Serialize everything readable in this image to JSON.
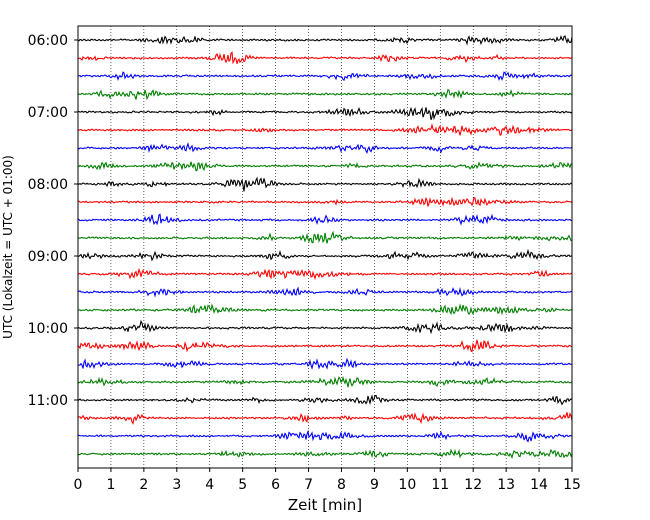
{
  "chart_data": {
    "type": "line",
    "title": "",
    "xlabel": "Zeit  [min]",
    "ylabel": "UTC (Lokalzeit = UTC + 01:00)",
    "xlim": [
      0,
      15
    ],
    "x_ticks": [
      "0",
      "1",
      "2",
      "3",
      "4",
      "5",
      "6",
      "7",
      "8",
      "9",
      "10",
      "11",
      "12",
      "13",
      "14",
      "15"
    ],
    "y_ticks": [
      "06:00",
      "07:00",
      "08:00",
      "09:00",
      "10:00",
      "11:00"
    ],
    "trace_interval_min": 15,
    "trace_count": 24,
    "trace_colors": [
      "#000000",
      "#ff0000",
      "#0000ff",
      "#007f00"
    ],
    "grid": "vertical-dotted"
  }
}
